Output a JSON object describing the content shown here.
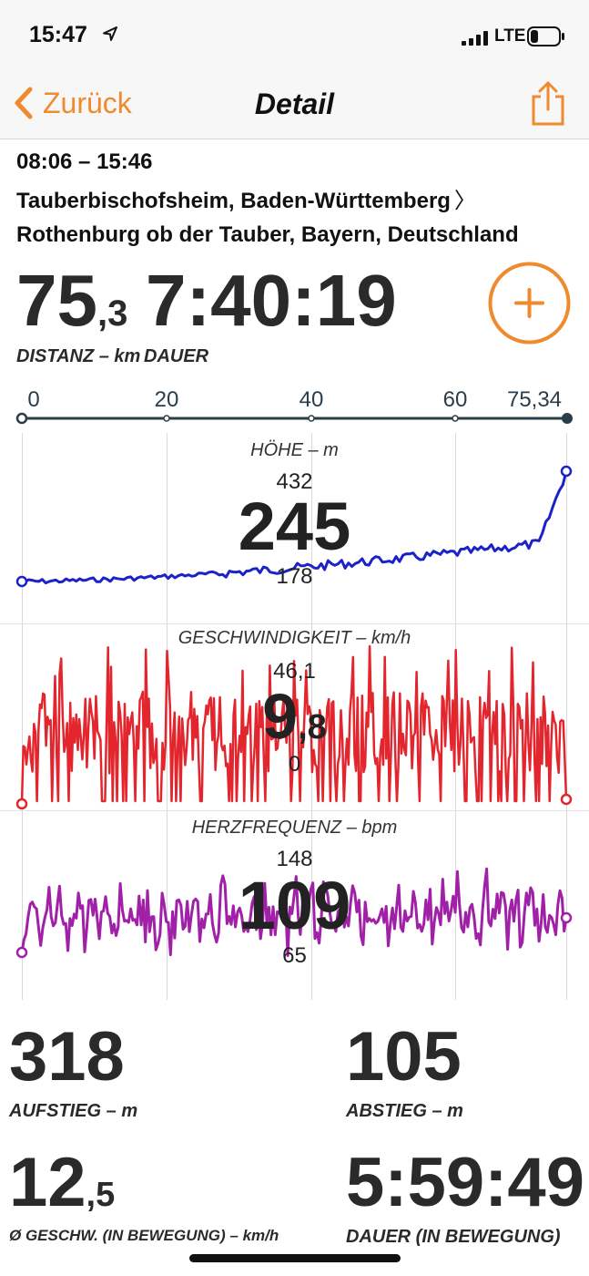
{
  "status_bar": {
    "time": "15:47",
    "network": "LTE"
  },
  "nav": {
    "back_label": "Zurück",
    "title": "Detail"
  },
  "trip": {
    "time_range": "08:06 – 15:46",
    "from": "Tauberbischofsheim, Baden-Württemberg",
    "separator": "〉",
    "to": "Rothenburg ob der Tauber, Bayern, Deutschland"
  },
  "summary": {
    "distance_int": "75",
    "distance_dec": ",3",
    "distance_label": "DISTANZ – km",
    "duration": "7:40:19",
    "duration_label": "DAUER"
  },
  "distance_axis": {
    "ticks": [
      "0",
      "20",
      "40",
      "60",
      "75,34"
    ],
    "values": [
      0,
      20,
      40,
      60,
      75.34
    ]
  },
  "charts": {
    "elevation": {
      "title": "HÖHE – m",
      "max": "432",
      "min": "178",
      "value": "245",
      "color": "#1a22c8"
    },
    "speed": {
      "title": "GESCHWINDIGKEIT – km/h",
      "max": "46,1",
      "min": "0",
      "value_int": "9",
      "value_dec": ",8",
      "color": "#e3262e"
    },
    "heart_rate": {
      "title": "HERZFREQUENZ – bpm",
      "max": "148",
      "min": "65",
      "value": "109",
      "color": "#a020a8"
    }
  },
  "stats": {
    "ascent": {
      "value": "318",
      "label": "AUFSTIEG – m"
    },
    "descent": {
      "value": "105",
      "label": "ABSTIEG – m"
    },
    "avg_speed": {
      "value_int": "12",
      "value_dec": ",5",
      "label": "Ø GESCHW. (IN BEWEGUNG) – km/h"
    },
    "moving_time": {
      "value": "5:59:49",
      "label": "DAUER (IN BEWEGUNG)"
    }
  },
  "colors": {
    "accent": "#ef8a2f",
    "axis": "#2a3d4a"
  }
}
